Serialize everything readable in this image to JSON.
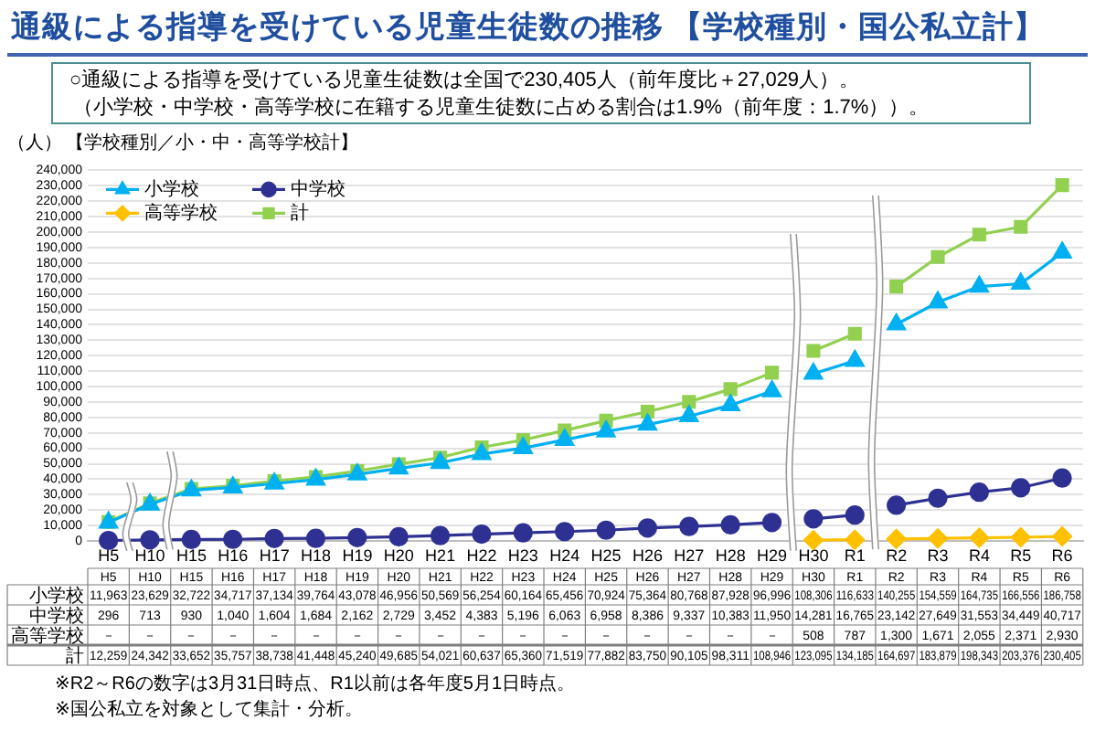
{
  "chart_data": {
    "type": "line",
    "title": "通級による指導を受けている児童生徒数の推移 【学校種別・国公私立計】",
    "subtitle": "○通級による指導を受けている児童生徒数は全国で230,405人（前年度比＋27,029人）。",
    "ylabel": "（人）",
    "annotations": [
      "（小学校・中学校・高等学校に在籍する児童生徒数に占める割合は1.9%（前年度：1.7%））。",
      "【学校種別／小・中・高等学校計】",
      "※R2～R6の数字は3月31日時点、R1以前は各年度5月1日時点。",
      "※国公私立を対象として集計・分析。"
    ],
    "categories": [
      "H5",
      "H10",
      "H15",
      "H16",
      "H17",
      "H18",
      "H19",
      "H20",
      "H21",
      "H22",
      "H23",
      "H24",
      "H25",
      "H26",
      "H27",
      "H28",
      "H29",
      "H30",
      "R1",
      "R2",
      "R3",
      "R4",
      "R5",
      "R6"
    ],
    "series": [
      {
        "name": "小学校",
        "color": "#00b0f0",
        "marker": "triangle",
        "values": [
          11963,
          23629,
          32722,
          34717,
          37134,
          39764,
          43078,
          46956,
          50569,
          56254,
          60164,
          65456,
          70924,
          75364,
          80768,
          87928,
          96996,
          108306,
          116633,
          140255,
          154559,
          164735,
          166556,
          186758
        ],
        "value_labels": [
          "11,963",
          "23,629",
          "32,722",
          "34,717",
          "37,134",
          "39,764",
          "43,078",
          "46,956",
          "50,569",
          "56,254",
          "60,164",
          "65,456",
          "70,924",
          "75,364",
          "80,768",
          "87,928",
          "96,996",
          "108,306",
          "116,633",
          "140,255",
          "154,559",
          "164,735",
          "166,556",
          "186,758"
        ]
      },
      {
        "name": "中学校",
        "color": "#2e3192",
        "marker": "circle",
        "values": [
          296,
          713,
          930,
          1040,
          1604,
          1684,
          2162,
          2729,
          3452,
          4383,
          5196,
          6063,
          6958,
          8386,
          9337,
          10383,
          11950,
          14281,
          16765,
          23142,
          27649,
          31553,
          34449,
          40717
        ],
        "value_labels": [
          "296",
          "713",
          "930",
          "1,040",
          "1,604",
          "1,684",
          "2,162",
          "2,729",
          "3,452",
          "4,383",
          "5,196",
          "6,063",
          "6,958",
          "8,386",
          "9,337",
          "10,383",
          "11,950",
          "14,281",
          "16,765",
          "23,142",
          "27,649",
          "31,553",
          "34,449",
          "40,717"
        ]
      },
      {
        "name": "高等学校",
        "color": "#ffc000",
        "marker": "diamond",
        "values": [
          null,
          null,
          null,
          null,
          null,
          null,
          null,
          null,
          null,
          null,
          null,
          null,
          null,
          null,
          null,
          null,
          null,
          508,
          787,
          1300,
          1671,
          2055,
          2371,
          2930
        ],
        "value_labels": [
          "－",
          "－",
          "－",
          "－",
          "－",
          "－",
          "－",
          "－",
          "－",
          "－",
          "－",
          "－",
          "－",
          "－",
          "－",
          "－",
          "－",
          "508",
          "787",
          "1,300",
          "1,671",
          "2,055",
          "2,371",
          "2,930"
        ]
      },
      {
        "name": "計",
        "color": "#92d050",
        "marker": "square",
        "values": [
          12259,
          24342,
          33652,
          35757,
          38738,
          41448,
          45240,
          49685,
          54021,
          60637,
          65360,
          71519,
          77882,
          83750,
          90105,
          98311,
          108946,
          123095,
          134185,
          164697,
          183879,
          198343,
          203376,
          230405
        ],
        "value_labels": [
          "12,259",
          "24,342",
          "33,652",
          "35,757",
          "38,738",
          "41,448",
          "45,240",
          "49,685",
          "54,021",
          "60,637",
          "65,360",
          "71,519",
          "77,882",
          "83,750",
          "90,105",
          "98,311",
          "108,946",
          "123,095",
          "134,185",
          "164,697",
          "183,879",
          "198,343",
          "203,376",
          "230,405"
        ]
      }
    ],
    "ylim": [
      0,
      240000
    ],
    "yticks": [
      0,
      {
        "value": 10000,
        "label": "10,000"
      },
      {
        "value": 20000,
        "label": "20,000"
      },
      {
        "value": 30000,
        "label": "30,000"
      },
      {
        "value": 40000,
        "label": "40,000"
      },
      {
        "value": 50000,
        "label": "50,000"
      },
      {
        "value": 60000,
        "label": "60,000"
      },
      {
        "value": 70000,
        "label": "70,000"
      },
      {
        "value": 80000,
        "label": "80,000"
      },
      {
        "value": 90000,
        "label": "90,000"
      },
      {
        "value": 100000,
        "label": "100,000"
      },
      {
        "value": 110000,
        "label": "110,000"
      },
      {
        "value": 120000,
        "label": "120,000"
      },
      {
        "value": 130000,
        "label": "130,000"
      },
      {
        "value": 140000,
        "label": "140,000"
      },
      {
        "value": 150000,
        "label": "150,000"
      },
      {
        "value": 160000,
        "label": "160,000"
      },
      {
        "value": 170000,
        "label": "170,000"
      },
      {
        "value": 180000,
        "label": "180,000"
      },
      {
        "value": 190000,
        "label": "190,000"
      },
      {
        "value": 200000,
        "label": "200,000"
      },
      {
        "value": 210000,
        "label": "210,000"
      },
      {
        "value": 220000,
        "label": "220,000"
      },
      {
        "value": 230000,
        "label": "230,000"
      },
      {
        "value": 240000,
        "label": "240,000"
      }
    ],
    "grid": "y",
    "legend": "top left"
  }
}
